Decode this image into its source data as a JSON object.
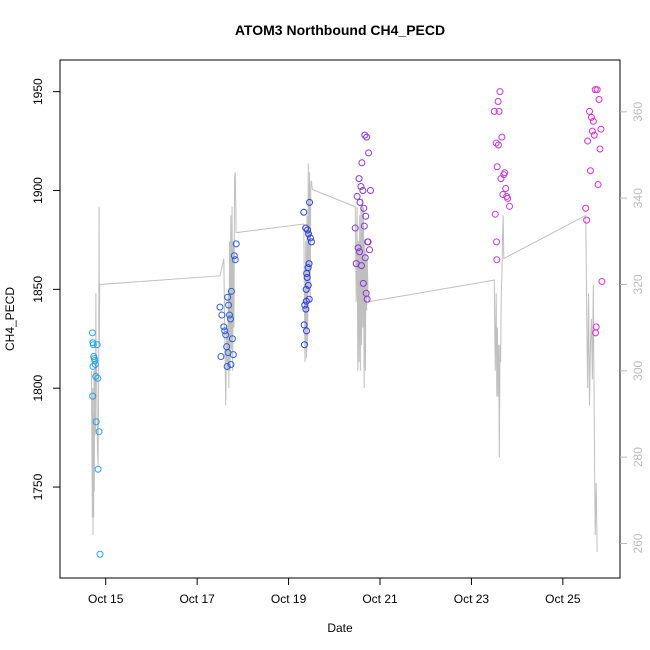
{
  "chart_data": {
    "type": "scatter",
    "title": "ATOM3 Northbound CH4_PECD",
    "xlabel": "Date",
    "ylabel": "CH4_PECD",
    "x_ticks": [
      "Oct 15",
      "Oct 17",
      "Oct 19",
      "Oct 21",
      "Oct 23",
      "Oct 25"
    ],
    "y_ticks": [
      "1750",
      "1800",
      "1850",
      "1900",
      "1950"
    ],
    "y2_ticks": [
      "260",
      "280",
      "300",
      "320",
      "340",
      "360"
    ],
    "xlim": [
      "2017-10-14 00:00",
      "2017-10-26 06:00"
    ],
    "ylim": [
      1704,
      1966
    ],
    "y2lim": [
      252,
      372
    ],
    "colors": {
      "line": "#bfbfbf",
      "right_axis": "#bbbbbb",
      "axis": "#000000"
    },
    "point_series": [
      {
        "color": "#29a3e0",
        "points": [
          [
            "2017-10-14 17:00",
            1828
          ],
          [
            "2017-10-14 17:15",
            1823
          ],
          [
            "2017-10-14 17:30",
            1822
          ],
          [
            "2017-10-14 17:45",
            1816
          ],
          [
            "2017-10-14 18:00",
            1815
          ],
          [
            "2017-10-14 18:15",
            1814
          ],
          [
            "2017-10-14 18:30",
            1812
          ],
          [
            "2017-10-14 17:20",
            1811
          ],
          [
            "2017-10-14 18:45",
            1806
          ],
          [
            "2017-10-14 17:10",
            1796
          ],
          [
            "2017-10-14 19:30",
            1822
          ],
          [
            "2017-10-14 19:50",
            1805
          ],
          [
            "2017-10-14 19:00",
            1783
          ],
          [
            "2017-10-14 20:30",
            1778
          ],
          [
            "2017-10-14 20:00",
            1759
          ],
          [
            "2017-10-14 21:00",
            1716
          ]
        ]
      },
      {
        "color": "#2a5fd6",
        "points": [
          [
            "2017-10-17 12:00",
            1841
          ],
          [
            "2017-10-17 13:00",
            1837
          ],
          [
            "2017-10-17 14:00",
            1831
          ],
          [
            "2017-10-17 14:30",
            1829
          ],
          [
            "2017-10-17 15:00",
            1827
          ],
          [
            "2017-10-17 16:00",
            1846
          ],
          [
            "2017-10-17 16:30",
            1842
          ],
          [
            "2017-10-17 17:00",
            1837
          ],
          [
            "2017-10-17 17:30",
            1835
          ],
          [
            "2017-10-17 18:00",
            1849
          ],
          [
            "2017-10-17 18:30",
            1825
          ],
          [
            "2017-10-17 15:30",
            1821
          ],
          [
            "2017-10-17 16:15",
            1818
          ],
          [
            "2017-10-17 19:00",
            1817
          ],
          [
            "2017-10-17 12:30",
            1816
          ],
          [
            "2017-10-17 17:45",
            1812
          ],
          [
            "2017-10-17 15:45",
            1811
          ],
          [
            "2017-10-17 19:30",
            1867
          ],
          [
            "2017-10-17 20:00",
            1865
          ],
          [
            "2017-10-17 20:30",
            1873
          ]
        ]
      },
      {
        "color": "#2b3ee0",
        "points": [
          [
            "2017-10-19 08:00",
            1889
          ],
          [
            "2017-10-19 11:00",
            1894
          ],
          [
            "2017-10-19 09:00",
            1881
          ],
          [
            "2017-10-19 10:00",
            1880
          ],
          [
            "2017-10-19 10:30",
            1878
          ],
          [
            "2017-10-19 11:30",
            1876
          ],
          [
            "2017-10-19 12:00",
            1874
          ],
          [
            "2017-10-19 10:45",
            1863
          ],
          [
            "2017-10-19 10:15",
            1861
          ],
          [
            "2017-10-19 09:30",
            1858
          ],
          [
            "2017-10-19 09:45",
            1856
          ],
          [
            "2017-10-19 10:20",
            1852
          ],
          [
            "2017-10-19 09:15",
            1850
          ],
          [
            "2017-10-19 10:50",
            1845
          ],
          [
            "2017-10-19 09:20",
            1844
          ],
          [
            "2017-10-19 08:30",
            1842
          ],
          [
            "2017-10-19 09:05",
            1840
          ],
          [
            "2017-10-19 08:10",
            1832
          ],
          [
            "2017-10-19 09:25",
            1829
          ],
          [
            "2017-10-19 08:20",
            1822
          ]
        ]
      },
      {
        "color": "#8a35d8",
        "points": [
          [
            "2017-10-20 12:00",
            1897
          ],
          [
            "2017-10-20 13:00",
            1906
          ],
          [
            "2017-10-20 14:00",
            1902
          ],
          [
            "2017-10-20 15:00",
            1900
          ],
          [
            "2017-10-20 16:00",
            1928
          ],
          [
            "2017-10-20 17:00",
            1927
          ],
          [
            "2017-10-20 18:00",
            1919
          ],
          [
            "2017-10-20 19:00",
            1900
          ],
          [
            "2017-10-20 14:30",
            1914
          ],
          [
            "2017-10-20 13:30",
            1894
          ],
          [
            "2017-10-20 15:30",
            1891
          ],
          [
            "2017-10-20 16:30",
            1887
          ],
          [
            "2017-10-20 15:45",
            1882
          ],
          [
            "2017-10-20 11:00",
            1881
          ],
          [
            "2017-10-20 17:30",
            1874
          ],
          [
            "2017-10-20 18:30",
            1870
          ],
          [
            "2017-10-20 12:30",
            1871
          ],
          [
            "2017-10-20 13:15",
            1869
          ],
          [
            "2017-10-20 16:15",
            1866
          ],
          [
            "2017-10-20 14:15",
            1862
          ],
          [
            "2017-10-20 11:30",
            1863
          ],
          [
            "2017-10-20 15:15",
            1853
          ],
          [
            "2017-10-20 16:45",
            1848
          ],
          [
            "2017-10-20 17:15",
            1845
          ],
          [
            "2017-10-20 17:45",
            1874
          ]
        ]
      },
      {
        "color": "#c23ad6",
        "points": [
          [
            "2017-10-23 12:00",
            1940
          ],
          [
            "2017-10-23 13:00",
            1924
          ],
          [
            "2017-10-23 14:00",
            1945
          ],
          [
            "2017-10-23 15:00",
            1950
          ],
          [
            "2017-10-23 16:00",
            1927
          ],
          [
            "2017-10-23 17:00",
            1908
          ],
          [
            "2017-10-23 18:00",
            1901
          ],
          [
            "2017-10-23 19:00",
            1896
          ],
          [
            "2017-10-23 20:00",
            1892
          ],
          [
            "2017-10-23 14:30",
            1940
          ],
          [
            "2017-10-23 13:30",
            1912
          ],
          [
            "2017-10-23 15:30",
            1906
          ],
          [
            "2017-10-23 16:30",
            1898
          ],
          [
            "2017-10-23 12:30",
            1888
          ],
          [
            "2017-10-23 13:10",
            1874
          ],
          [
            "2017-10-23 13:20",
            1865
          ],
          [
            "2017-10-23 17:30",
            1909
          ],
          [
            "2017-10-23 18:30",
            1897
          ],
          [
            "2017-10-23 14:10",
            1923
          ]
        ]
      },
      {
        "color": "#e02bd6",
        "points": [
          [
            "2017-10-25 17:00",
            1951
          ],
          [
            "2017-10-25 18:00",
            1951
          ],
          [
            "2017-10-25 19:00",
            1946
          ],
          [
            "2017-10-25 14:00",
            1940
          ],
          [
            "2017-10-25 15:00",
            1937
          ],
          [
            "2017-10-25 16:00",
            1935
          ],
          [
            "2017-10-25 20:00",
            1931
          ],
          [
            "2017-10-25 15:30",
            1930
          ],
          [
            "2017-10-25 16:30",
            1928
          ],
          [
            "2017-10-25 13:00",
            1925
          ],
          [
            "2017-10-25 19:30",
            1921
          ],
          [
            "2017-10-25 14:30",
            1910
          ],
          [
            "2017-10-25 18:30",
            1903
          ],
          [
            "2017-10-25 12:00",
            1891
          ],
          [
            "2017-10-25 12:30",
            1885
          ],
          [
            "2017-10-25 20:30",
            1854
          ],
          [
            "2017-10-25 17:30",
            1831
          ],
          [
            "2017-10-25 17:10",
            1828
          ]
        ]
      }
    ],
    "line_series": {
      "axis": "right",
      "color": "#bfbfbf",
      "points": [
        [
          "2017-10-14 16:30",
          300
        ],
        [
          "2017-10-14 16:45",
          282
        ],
        [
          "2017-10-14 17:00",
          266
        ],
        [
          "2017-10-14 17:10",
          296
        ],
        [
          "2017-10-14 17:20",
          262
        ],
        [
          "2017-10-14 17:30",
          290
        ],
        [
          "2017-10-14 17:40",
          266
        ],
        [
          "2017-10-14 17:50",
          300
        ],
        [
          "2017-10-14 18:00",
          272
        ],
        [
          "2017-10-14 18:10",
          300
        ],
        [
          "2017-10-14 18:20",
          285
        ],
        [
          "2017-10-14 18:30",
          304
        ],
        [
          "2017-10-14 18:40",
          286
        ],
        [
          "2017-10-14 18:50",
          318
        ],
        [
          "2017-10-14 19:00",
          298
        ],
        [
          "2017-10-14 19:10",
          302
        ],
        [
          "2017-10-14 19:20",
          296
        ],
        [
          "2017-10-14 19:40",
          282
        ],
        [
          "2017-10-14 20:00",
          278
        ],
        [
          "2017-10-14 20:20",
          305
        ],
        [
          "2017-10-14 20:30",
          338
        ],
        [
          "2017-10-14 20:40",
          306
        ],
        [
          "2017-10-14 20:50",
          320
        ],
        [
          "2017-10-17 12:00",
          322
        ],
        [
          "2017-10-17 14:00",
          326
        ],
        [
          "2017-10-17 15:00",
          292
        ],
        [
          "2017-10-17 15:30",
          310
        ],
        [
          "2017-10-17 16:00",
          300
        ],
        [
          "2017-10-17 16:20",
          318
        ],
        [
          "2017-10-17 16:40",
          296
        ],
        [
          "2017-10-17 17:00",
          330
        ],
        [
          "2017-10-17 17:20",
          300
        ],
        [
          "2017-10-17 17:40",
          336
        ],
        [
          "2017-10-17 18:00",
          305
        ],
        [
          "2017-10-17 18:20",
          338
        ],
        [
          "2017-10-17 18:40",
          300
        ],
        [
          "2017-10-17 19:00",
          330
        ],
        [
          "2017-10-17 19:20",
          310
        ],
        [
          "2017-10-17 19:40",
          345
        ],
        [
          "2017-10-17 20:00",
          346
        ],
        [
          "2017-10-17 20:30",
          332
        ],
        [
          "2017-10-19 08:00",
          334
        ],
        [
          "2017-10-19 08:20",
          316
        ],
        [
          "2017-10-19 08:40",
          302
        ],
        [
          "2017-10-19 09:00",
          330
        ],
        [
          "2017-10-19 09:20",
          303
        ],
        [
          "2017-10-19 09:40",
          336
        ],
        [
          "2017-10-19 10:00",
          306
        ],
        [
          "2017-10-19 10:20",
          348
        ],
        [
          "2017-10-19 10:40",
          318
        ],
        [
          "2017-10-19 11:00",
          346
        ],
        [
          "2017-10-19 11:20",
          316
        ],
        [
          "2017-10-19 11:40",
          343
        ],
        [
          "2017-10-19 12:00",
          344
        ],
        [
          "2017-10-19 12:30",
          342
        ],
        [
          "2017-10-20 11:00",
          338
        ],
        [
          "2017-10-20 11:30",
          316
        ],
        [
          "2017-10-20 12:00",
          338
        ],
        [
          "2017-10-20 12:20",
          300
        ],
        [
          "2017-10-20 12:40",
          330
        ],
        [
          "2017-10-20 13:00",
          302
        ],
        [
          "2017-10-20 13:20",
          336
        ],
        [
          "2017-10-20 13:40",
          300
        ],
        [
          "2017-10-20 14:00",
          338
        ],
        [
          "2017-10-20 14:20",
          306
        ],
        [
          "2017-10-20 14:40",
          340
        ],
        [
          "2017-10-20 15:00",
          310
        ],
        [
          "2017-10-20 15:20",
          338
        ],
        [
          "2017-10-20 15:40",
          296
        ],
        [
          "2017-10-20 16:00",
          330
        ],
        [
          "2017-10-20 16:20",
          300
        ],
        [
          "2017-10-20 16:40",
          328
        ],
        [
          "2017-10-20 17:00",
          314
        ],
        [
          "2017-10-20 17:20",
          326
        ],
        [
          "2017-10-20 17:40",
          318
        ],
        [
          "2017-10-20 18:00",
          316
        ],
        [
          "2017-10-23 12:00",
          321
        ],
        [
          "2017-10-23 12:30",
          300
        ],
        [
          "2017-10-23 13:00",
          318
        ],
        [
          "2017-10-23 13:20",
          294
        ],
        [
          "2017-10-23 13:40",
          310
        ],
        [
          "2017-10-23 14:00",
          294
        ],
        [
          "2017-10-23 14:20",
          306
        ],
        [
          "2017-10-23 14:40",
          280
        ],
        [
          "2017-10-23 15:00",
          306
        ],
        [
          "2017-10-23 15:20",
          302
        ],
        [
          "2017-10-23 15:40",
          318
        ],
        [
          "2017-10-23 16:00",
          322
        ],
        [
          "2017-10-23 16:20",
          331
        ],
        [
          "2017-10-23 16:40",
          336
        ],
        [
          "2017-10-23 17:00",
          326
        ],
        [
          "2017-10-25 12:00",
          336
        ],
        [
          "2017-10-25 12:30",
          314
        ],
        [
          "2017-10-25 13:00",
          296
        ],
        [
          "2017-10-25 13:30",
          318
        ],
        [
          "2017-10-25 14:00",
          292
        ],
        [
          "2017-10-25 14:30",
          306
        ],
        [
          "2017-10-25 15:00",
          312
        ],
        [
          "2017-10-25 15:30",
          298
        ],
        [
          "2017-10-25 16:00",
          320
        ],
        [
          "2017-10-25 16:30",
          286
        ],
        [
          "2017-10-25 17:00",
          262
        ],
        [
          "2017-10-25 17:30",
          274
        ],
        [
          "2017-10-25 18:00",
          258
        ]
      ]
    }
  }
}
